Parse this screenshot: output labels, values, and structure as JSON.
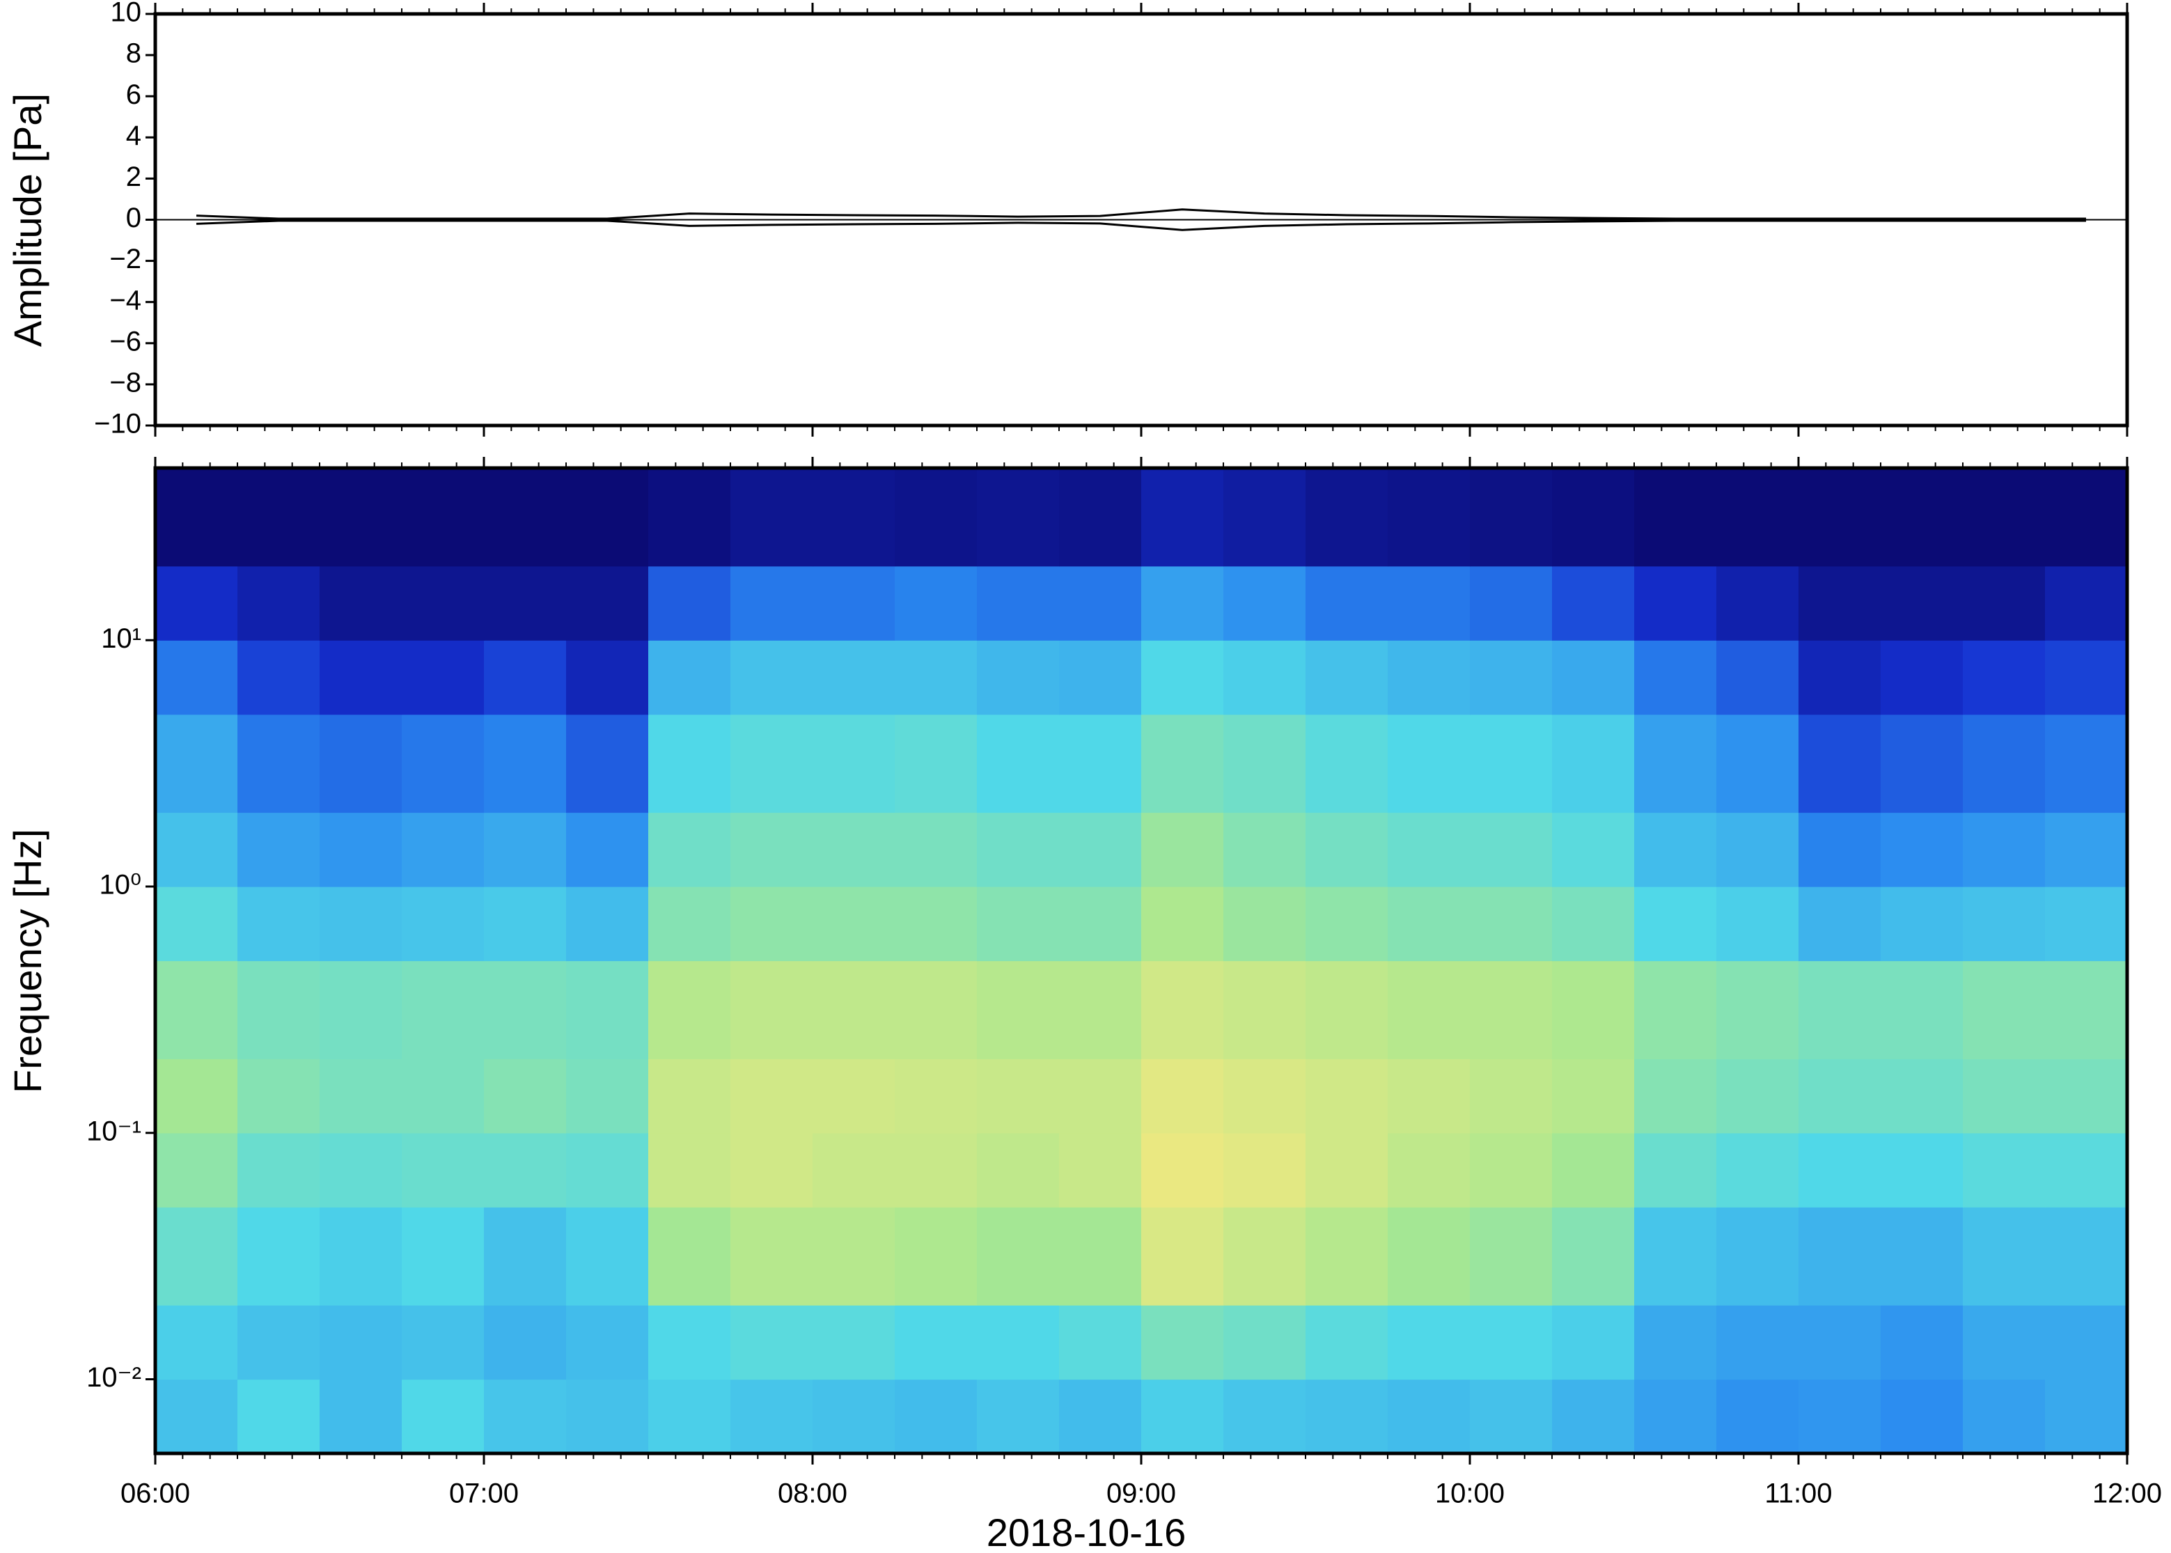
{
  "chart_data": [
    {
      "type": "line",
      "ylabel": "Amplitude [Pa]",
      "xlim": [
        6,
        12
      ],
      "xticks": [
        6,
        7,
        8,
        9,
        10,
        11,
        12
      ],
      "ylim": [
        -10,
        10
      ],
      "yticks": [
        {
          "value": -10,
          "label": "−10"
        },
        {
          "value": -8,
          "label": "−8"
        },
        {
          "value": -6,
          "label": "−6"
        },
        {
          "value": -4,
          "label": "−4"
        },
        {
          "value": -2,
          "label": "−2"
        },
        0,
        2,
        4,
        6,
        8,
        10
      ],
      "x": [
        6.125,
        6.375,
        6.625,
        6.875,
        7.125,
        7.375,
        7.625,
        7.875,
        8.125,
        8.375,
        8.625,
        8.875,
        9.125,
        9.375,
        9.625,
        9.875,
        10.125,
        10.375,
        10.625,
        10.875,
        11.125,
        11.375,
        11.625,
        11.875
      ],
      "values": [
        0.2,
        0.05,
        0.05,
        0.05,
        0.05,
        0.05,
        0.3,
        0.25,
        0.22,
        0.2,
        0.15,
        0.18,
        0.5,
        0.3,
        0.22,
        0.18,
        0.12,
        0.08,
        0.05,
        0.05,
        0.05,
        0.05,
        0.05,
        0.05
      ],
      "color": "#000000"
    },
    {
      "type": "heatmap",
      "ylabel": "Frequency [Hz]",
      "xlabel": "2018-10-16",
      "xlim": [
        6,
        12
      ],
      "xticks": [
        {
          "value": 6,
          "label": "06:00"
        },
        {
          "value": 7,
          "label": "07:00"
        },
        {
          "value": 8,
          "label": "08:00"
        },
        {
          "value": 9,
          "label": "09:00"
        },
        {
          "value": 10,
          "label": "10:00"
        },
        {
          "value": 11,
          "label": "11:00"
        },
        {
          "value": 12,
          "label": "12:00"
        }
      ],
      "ylim": [
        0.005,
        50
      ],
      "ylog": true,
      "yticks": [
        {
          "value": 0.01,
          "label": "10⁻²"
        },
        {
          "value": 0.1,
          "label": "10⁻¹"
        },
        {
          "value": 1,
          "label": "10⁰"
        },
        {
          "value": 10,
          "label": "10¹"
        }
      ],
      "xbins": [
        6,
        6.25,
        6.5,
        6.75,
        7,
        7.25,
        7.5,
        7.75,
        8,
        8.25,
        8.5,
        8.75,
        9,
        9.25,
        9.5,
        9.75,
        10,
        10.25,
        10.5,
        10.75,
        11,
        11.25,
        11.5,
        11.75,
        12
      ],
      "ybins": [
        0.005,
        0.01,
        0.02,
        0.05,
        0.1,
        0.2,
        0.5,
        1,
        2,
        5,
        10,
        20,
        50
      ],
      "colormap": [
        "#0b0b75",
        "#1530d0",
        "#2a8af0",
        "#50d8e8",
        "#a8e890",
        "#f0e880",
        "#f5a860"
      ],
      "z": [
        [
          0.45,
          0.5,
          0.44,
          0.5,
          0.46,
          0.45,
          0.48,
          0.46,
          0.45,
          0.44,
          0.46,
          0.44,
          0.48,
          0.46,
          0.45,
          0.44,
          0.45,
          0.42,
          0.38,
          0.35,
          0.36,
          0.34,
          0.38,
          0.4
        ],
        [
          0.48,
          0.45,
          0.44,
          0.45,
          0.42,
          0.44,
          0.5,
          0.52,
          0.52,
          0.5,
          0.5,
          0.52,
          0.58,
          0.56,
          0.52,
          0.5,
          0.5,
          0.48,
          0.4,
          0.38,
          0.38,
          0.36,
          0.4,
          0.4
        ],
        [
          0.55,
          0.5,
          0.48,
          0.5,
          0.45,
          0.48,
          0.66,
          0.7,
          0.7,
          0.68,
          0.66,
          0.66,
          0.78,
          0.74,
          0.7,
          0.66,
          0.64,
          0.6,
          0.46,
          0.44,
          0.42,
          0.42,
          0.45,
          0.45
        ],
        [
          0.62,
          0.55,
          0.54,
          0.55,
          0.55,
          0.54,
          0.74,
          0.76,
          0.74,
          0.74,
          0.72,
          0.74,
          0.82,
          0.8,
          0.76,
          0.72,
          0.7,
          0.66,
          0.55,
          0.52,
          0.5,
          0.5,
          0.52,
          0.52
        ],
        [
          0.66,
          0.6,
          0.58,
          0.58,
          0.6,
          0.58,
          0.74,
          0.76,
          0.76,
          0.75,
          0.74,
          0.74,
          0.8,
          0.78,
          0.76,
          0.74,
          0.72,
          0.7,
          0.6,
          0.58,
          0.56,
          0.56,
          0.58,
          0.58
        ],
        [
          0.62,
          0.58,
          0.57,
          0.58,
          0.58,
          0.57,
          0.7,
          0.72,
          0.72,
          0.72,
          0.7,
          0.7,
          0.76,
          0.74,
          0.72,
          0.7,
          0.7,
          0.68,
          0.62,
          0.6,
          0.58,
          0.58,
          0.6,
          0.6
        ],
        [
          0.52,
          0.46,
          0.45,
          0.46,
          0.47,
          0.44,
          0.6,
          0.62,
          0.62,
          0.62,
          0.6,
          0.6,
          0.68,
          0.64,
          0.62,
          0.6,
          0.6,
          0.58,
          0.5,
          0.48,
          0.42,
          0.44,
          0.45,
          0.46
        ],
        [
          0.45,
          0.38,
          0.36,
          0.38,
          0.4,
          0.35,
          0.56,
          0.58,
          0.58,
          0.58,
          0.56,
          0.56,
          0.64,
          0.6,
          0.57,
          0.55,
          0.55,
          0.52,
          0.44,
          0.42,
          0.32,
          0.34,
          0.36,
          0.38
        ],
        [
          0.4,
          0.3,
          0.28,
          0.3,
          0.32,
          0.25,
          0.5,
          0.52,
          0.52,
          0.53,
          0.5,
          0.5,
          0.58,
          0.56,
          0.52,
          0.5,
          0.5,
          0.48,
          0.38,
          0.35,
          0.22,
          0.25,
          0.28,
          0.3
        ],
        [
          0.3,
          0.2,
          0.15,
          0.15,
          0.2,
          0.12,
          0.42,
          0.45,
          0.45,
          0.45,
          0.43,
          0.42,
          0.5,
          0.48,
          0.45,
          0.43,
          0.42,
          0.4,
          0.3,
          0.25,
          0.12,
          0.15,
          0.18,
          0.2
        ],
        [
          0.15,
          0.1,
          0.05,
          0.05,
          0.05,
          0.05,
          0.25,
          0.3,
          0.3,
          0.32,
          0.3,
          0.3,
          0.38,
          0.35,
          0.3,
          0.3,
          0.28,
          0.22,
          0.15,
          0.1,
          0.05,
          0.05,
          0.05,
          0.1
        ],
        [
          0,
          0,
          0,
          0,
          0,
          0,
          0.02,
          0.05,
          0.05,
          0.04,
          0.05,
          0.04,
          0.1,
          0.08,
          0.05,
          0.04,
          0.03,
          0.02,
          0,
          0,
          0,
          0,
          0,
          0
        ]
      ]
    }
  ]
}
